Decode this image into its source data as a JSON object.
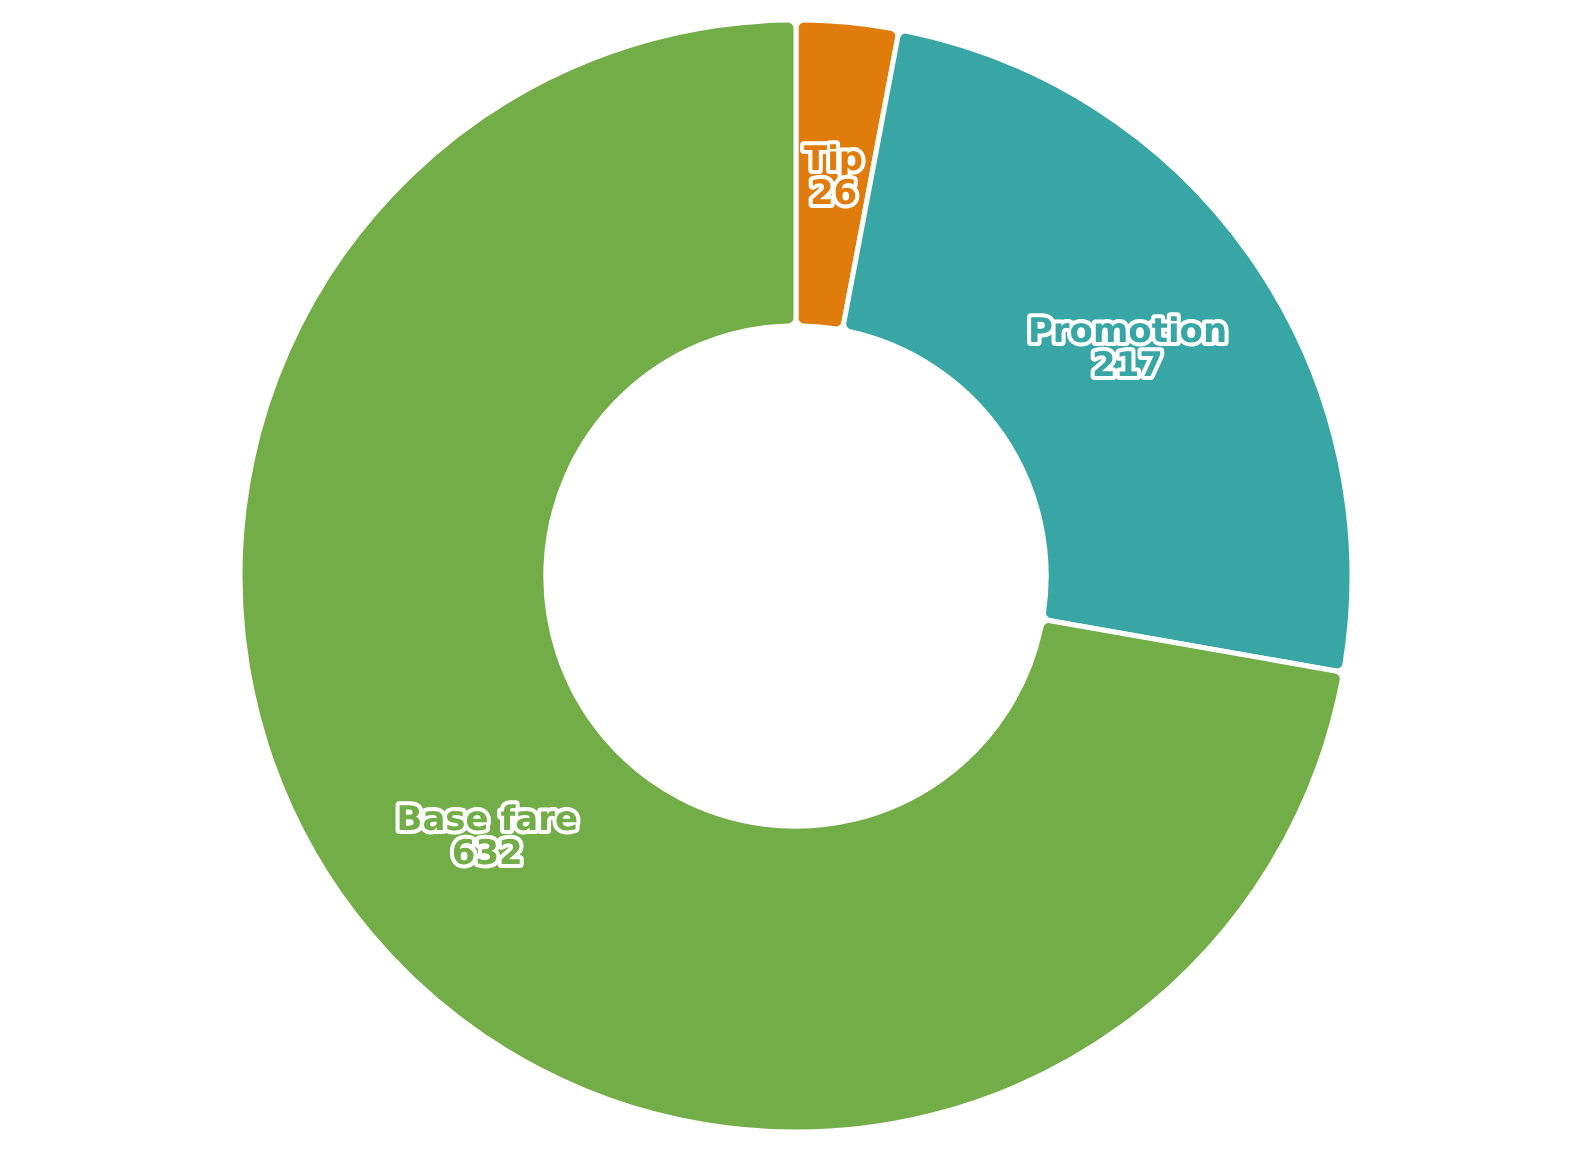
{
  "chart_data": {
    "type": "donut",
    "categories": [
      "Tip",
      "Promotion",
      "Base fare"
    ],
    "values": [
      26,
      217,
      632
    ],
    "colors": [
      "#e07c0b",
      "#38a6a5",
      "#72ad48"
    ],
    "data_labels": true
  }
}
